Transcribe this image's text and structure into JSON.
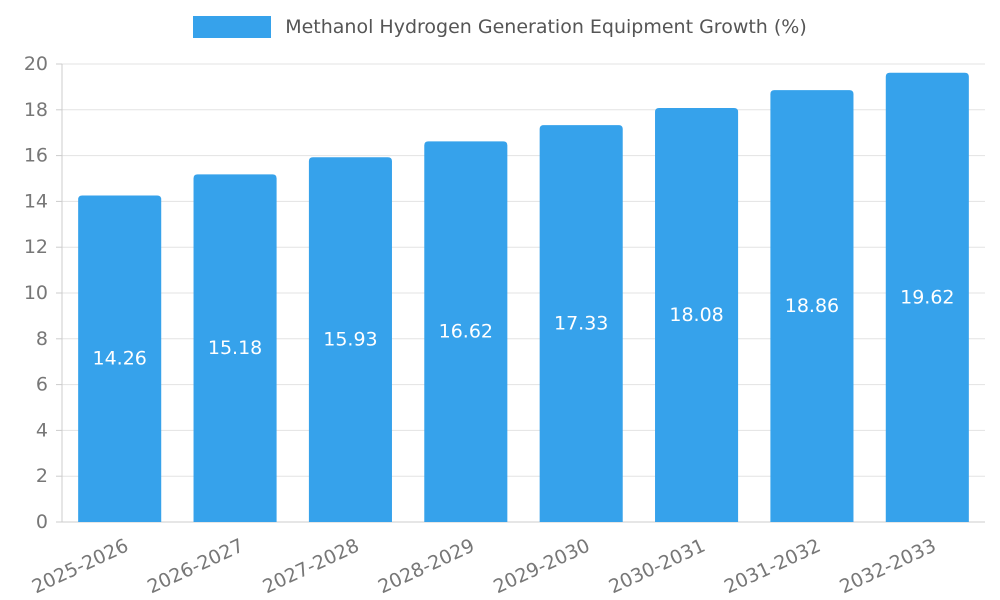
{
  "legend": {
    "title": "Methanol Hydrogen Generation Equipment Growth (%)"
  },
  "chart_data": {
    "type": "bar",
    "title": "Methanol Hydrogen Generation Equipment Growth (%)",
    "categories": [
      "2025-2026",
      "2026-2027",
      "2027-2028",
      "2028-2029",
      "2029-2030",
      "2030-2031",
      "2031-2032",
      "2032-2033"
    ],
    "values": [
      14.26,
      15.18,
      15.93,
      16.62,
      17.33,
      18.08,
      18.86,
      19.62
    ],
    "xlabel": "",
    "ylabel": "",
    "ylim": [
      0,
      20
    ],
    "ytick_step": 2,
    "grid": true,
    "legend_position": "top",
    "value_label_position": "inside-center",
    "bar_color": "#36a2eb",
    "value_label_color": "#ffffff",
    "axis_text_color": "#777777",
    "grid_color": "#e3e3e3",
    "axis_line_color": "#cccccc"
  }
}
